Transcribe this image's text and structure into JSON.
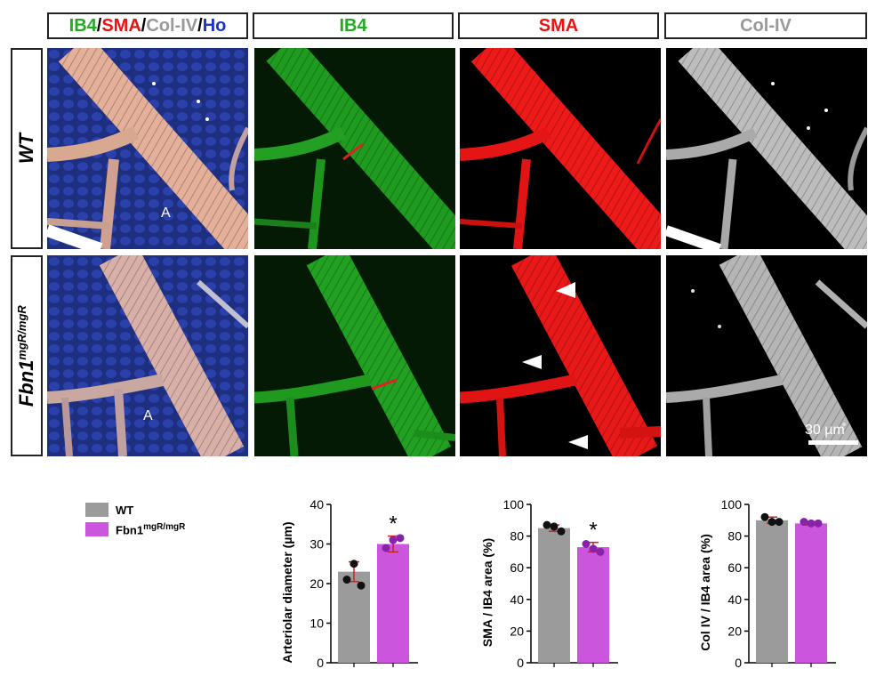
{
  "headers": {
    "merge": [
      {
        "text": "IB4",
        "color": "#22aa22"
      },
      {
        "text": "/",
        "color": "#111111"
      },
      {
        "text": "SMA",
        "color": "#ee1111"
      },
      {
        "text": "/",
        "color": "#111111"
      },
      {
        "text": "Col-IV",
        "color": "#999999"
      },
      {
        "text": "/",
        "color": "#111111"
      },
      {
        "text": "Ho",
        "color": "#1a33cc"
      }
    ],
    "ib4": "IB4",
    "sma": "SMA",
    "coliv": "Col-IV"
  },
  "colors": {
    "ib4": "#22aa22",
    "sma": "#ee1111",
    "coliv": "#999999",
    "ho": "#1a33cc",
    "wt_bar": "#9b9b9b",
    "mut_bar": "#cc55dd",
    "error": "#cc2222"
  },
  "rows": {
    "wt": "WT",
    "mut_base": "Fbn1",
    "mut_sup": "mgR/mgR"
  },
  "image_labels": {
    "artery_label": "A",
    "scale_bar": "30 µm"
  },
  "legend": {
    "wt": "WT",
    "mut_base": "Fbn1",
    "mut_sup": "mgR/mgR"
  },
  "chart_data": [
    {
      "type": "bar",
      "categories": [
        "WT",
        "Fbn1mgR/mgR"
      ],
      "values": [
        23,
        30
      ],
      "points": [
        [
          21,
          25,
          19.5
        ],
        [
          29,
          31,
          31.5
        ]
      ],
      "errors": [
        2.5,
        2
      ],
      "ylabel": "Arteriolar diameter (µm)",
      "ylim": [
        0,
        40
      ],
      "yticks": [
        "0",
        "10",
        "20",
        "30",
        "40"
      ],
      "significance": "*"
    },
    {
      "type": "bar",
      "categories": [
        "WT",
        "Fbn1mgR/mgR"
      ],
      "values": [
        85,
        73
      ],
      "points": [
        [
          87,
          86,
          83
        ],
        [
          75,
          72,
          70
        ]
      ],
      "errors": [
        2,
        3
      ],
      "ylabel": "SMA / IB4 area (%)",
      "ylim": [
        0,
        100
      ],
      "yticks": [
        "0",
        "20",
        "40",
        "60",
        "80",
        "100"
      ],
      "significance": "*"
    },
    {
      "type": "bar",
      "categories": [
        "WT",
        "Fbn1mgR/mgR"
      ],
      "values": [
        90,
        88
      ],
      "points": [
        [
          92,
          89,
          89
        ],
        [
          89,
          88,
          88
        ]
      ],
      "errors": [
        2,
        1
      ],
      "ylabel": "Col IV / IB4 area (%)",
      "ylim": [
        0,
        100
      ],
      "yticks": [
        "0",
        "20",
        "40",
        "60",
        "80",
        "100"
      ],
      "significance": ""
    }
  ]
}
